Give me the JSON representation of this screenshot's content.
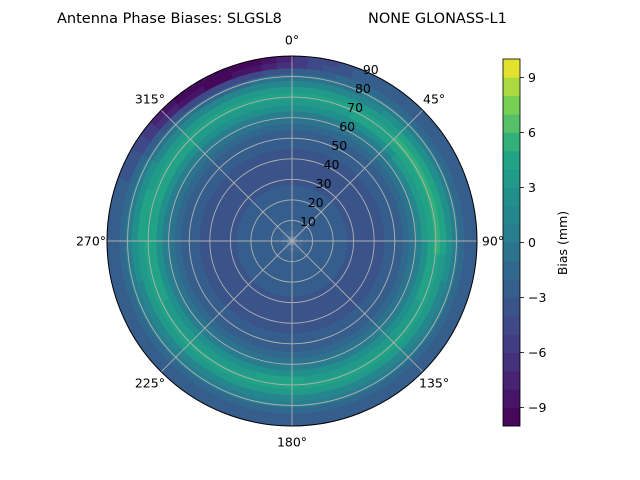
{
  "chart_data": {
    "type": "polar-contour",
    "title": "Antenna Phase Biases: SLGSL8",
    "subtitle": "NONE GLONASS-L1",
    "angular_ticks": [
      "0°",
      "45°",
      "90°",
      "135°",
      "180°",
      "225°",
      "270°",
      "315°"
    ],
    "radial_ticks": [
      "10",
      "20",
      "30",
      "40",
      "50",
      "60",
      "70",
      "80",
      "90"
    ],
    "radial_range": [
      0,
      90
    ],
    "angular_direction": "clockwise",
    "angular_zero": "top",
    "grid": true,
    "colorbar": {
      "label": "Bias (mm)",
      "range": [
        -10,
        10
      ],
      "ticks": [
        "−9",
        "−6",
        "−3",
        "0",
        "3",
        "6",
        "9"
      ],
      "tick_values": [
        -9,
        -6,
        -3,
        0,
        3,
        6,
        9
      ],
      "levels": 20,
      "colormap": "viridis"
    },
    "approx_field": {
      "center_bias": -2,
      "zenith_ring_mid_bias": -3.5,
      "outer_ring_elev_deg": 70,
      "outer_ring_bias": 4,
      "lobes": [
        {
          "azimuth_deg": 70,
          "bias": 5.5
        },
        {
          "azimuth_deg": 280,
          "bias": 5
        },
        {
          "azimuth_deg": 185,
          "bias": 4.5
        }
      ],
      "low_region": {
        "azimuth_deg": 335,
        "bias": -4.5
      }
    }
  }
}
